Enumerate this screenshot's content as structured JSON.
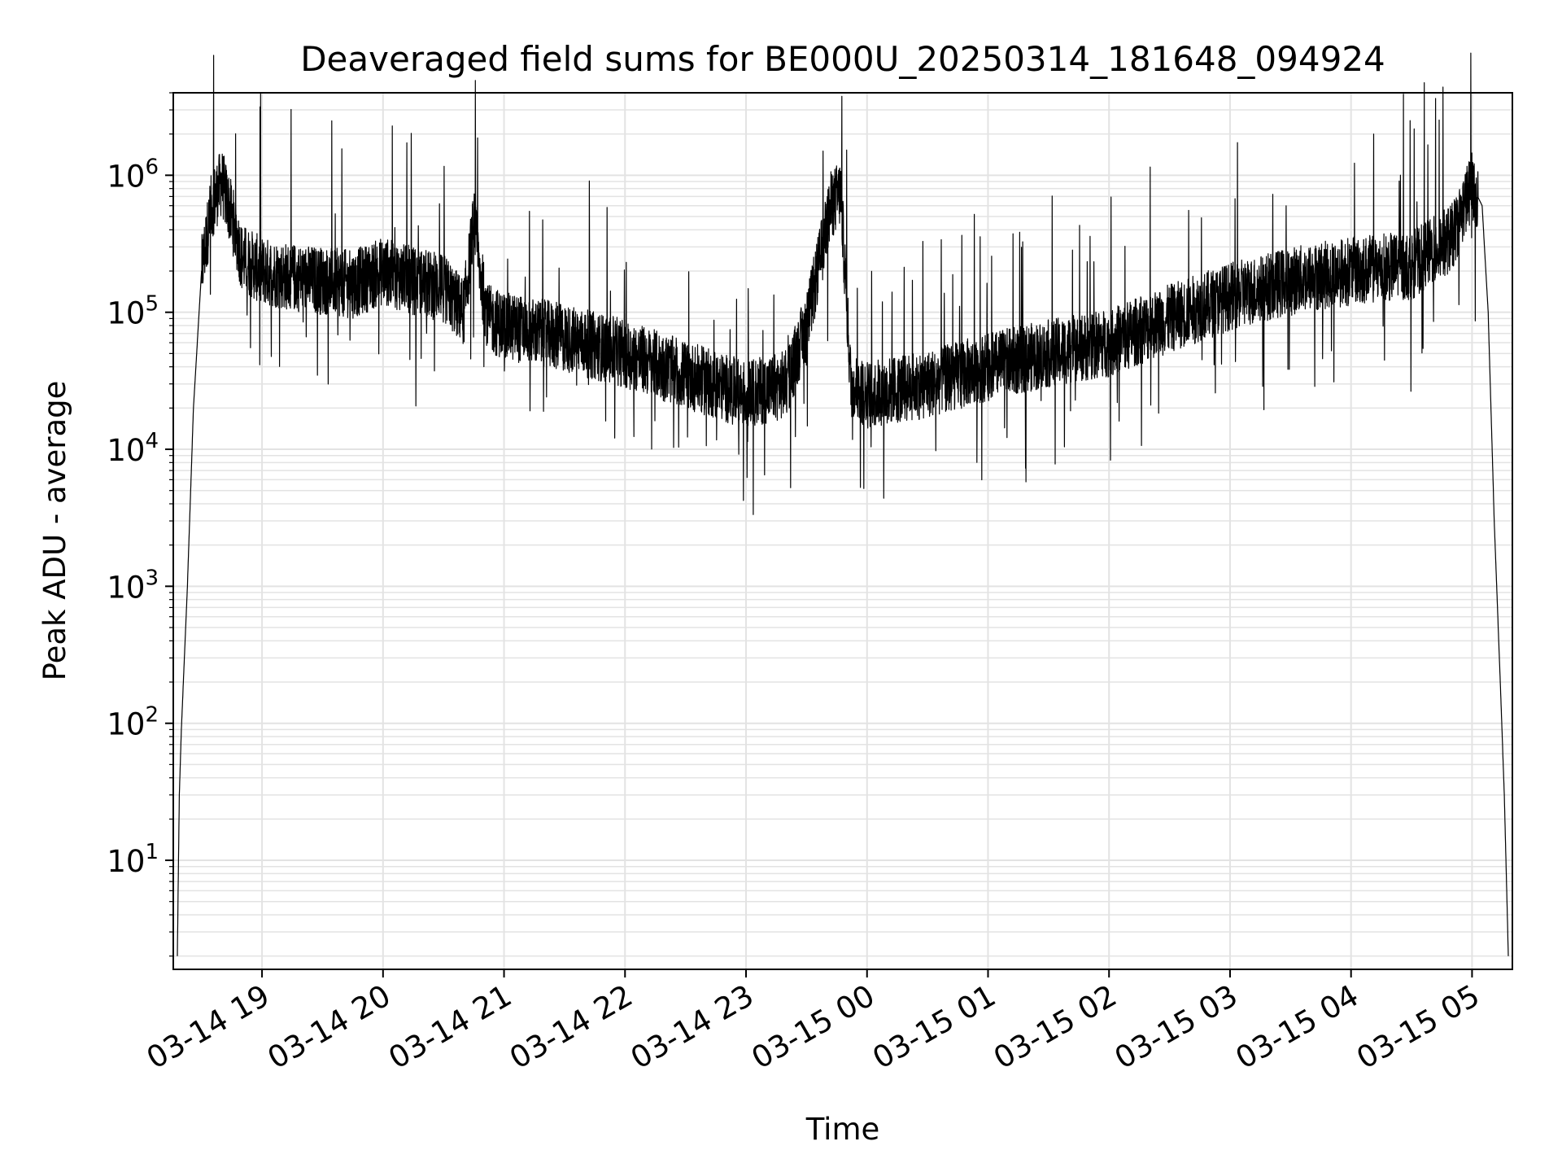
{
  "chart_data": {
    "type": "line",
    "title": "Deaveraged field sums for BE000U_20250314_181648_094924",
    "xlabel": "Time",
    "ylabel": "Peak ADU - average",
    "x_ticks": [
      "03-14 19",
      "03-14 20",
      "03-14 21",
      "03-14 22",
      "03-14 23",
      "03-15 00",
      "03-15 01",
      "03-15 02",
      "03-15 03",
      "03-15 04",
      "03-15 05"
    ],
    "y_ticks": [
      "10^1",
      "10^2",
      "10^3",
      "10^4",
      "10^5",
      "10^6"
    ],
    "y_scale": "log",
    "xlim": [
      "2025-03-14 18:16",
      "2025-03-15 05:20"
    ],
    "ylim": [
      1.6,
      4000000
    ],
    "grid": true,
    "line_color": "#000000",
    "series": [
      {
        "x": [
          "2025-03-14 18:18",
          "2025-03-14 18:19",
          "2025-03-14 18:20",
          "2025-03-14 18:21",
          "2025-03-14 18:23",
          "2025-03-14 18:26",
          "2025-03-14 18:30",
          "2025-03-14 18:35",
          "2025-03-14 18:40",
          "2025-03-14 18:45",
          "2025-03-14 18:50",
          "2025-03-14 19:00",
          "2025-03-14 19:15",
          "2025-03-14 19:30",
          "2025-03-14 19:45",
          "2025-03-14 20:00",
          "2025-03-14 20:15",
          "2025-03-14 20:30",
          "2025-03-14 20:40",
          "2025-03-14 20:45",
          "2025-03-14 20:48",
          "2025-03-14 20:52",
          "2025-03-14 21:00",
          "2025-03-14 21:30",
          "2025-03-14 22:00",
          "2025-03-14 22:30",
          "2025-03-14 23:00",
          "2025-03-14 23:20",
          "2025-03-14 23:30",
          "2025-03-14 23:38",
          "2025-03-14 23:42",
          "2025-03-14 23:47",
          "2025-03-14 23:52",
          "2025-03-15 00:00",
          "2025-03-15 00:30",
          "2025-03-15 01:00",
          "2025-03-15 01:30",
          "2025-03-15 02:00",
          "2025-03-15 02:30",
          "2025-03-15 03:00",
          "2025-03-15 03:30",
          "2025-03-15 04:00",
          "2025-03-15 04:30",
          "2025-03-15 04:50",
          "2025-03-15 05:00",
          "2025-03-15 05:05",
          "2025-03-15 05:08",
          "2025-03-15 05:11",
          "2025-03-15 05:14",
          "2025-03-15 05:16",
          "2025-03-15 05:18"
        ],
        "y": [
          2,
          30,
          90,
          200,
          1000,
          20000,
          200000,
          600000,
          900000,
          500000,
          250000,
          200000,
          180000,
          170000,
          160000,
          200000,
          170000,
          150000,
          100000,
          450000,
          200000,
          90000,
          80000,
          65000,
          50000,
          35000,
          25000,
          30000,
          80000,
          300000,
          600000,
          750000,
          30000,
          25000,
          30000,
          40000,
          50000,
          60000,
          90000,
          130000,
          170000,
          200000,
          220000,
          350000,
          850000,
          600000,
          100000,
          3000,
          200,
          30,
          2
        ]
      }
    ]
  }
}
